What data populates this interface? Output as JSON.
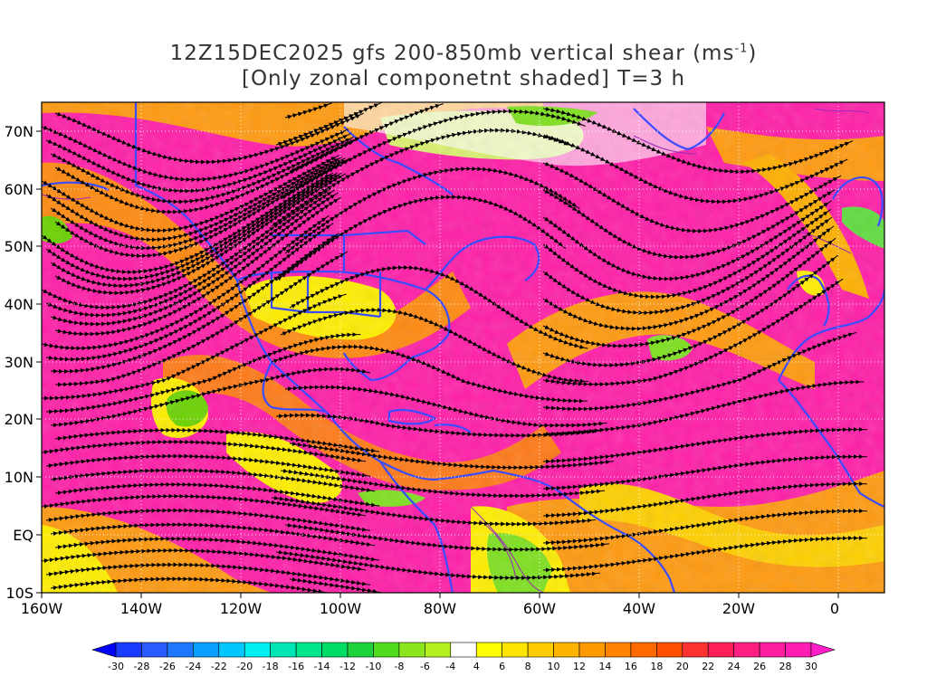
{
  "title": {
    "line1": "12Z15DEC2025 gfs 200-850mb vertical shear (ms",
    "line1_sup": "-1",
    "line1_end": ")",
    "line2": "[Only zonal componetnt shaded] T=3 h"
  },
  "map": {
    "lat_labels": [
      "70N",
      "60N",
      "50N",
      "40N",
      "30N",
      "20N",
      "10N",
      "EQ",
      "10S"
    ],
    "lon_labels": [
      "160W",
      "140W",
      "120W",
      "100W",
      "80W",
      "60W",
      "40W",
      "20W",
      "0"
    ],
    "colors": {
      "magenta": "#ff1fa8",
      "red": "#ff2050",
      "orange": "#ff8a10",
      "yellow": "#ffee00",
      "green": "#7fe020",
      "coast": "#3a4cff",
      "streamline": "#000000"
    }
  },
  "colorbar": {
    "labels": [
      "-30",
      "-28",
      "-26",
      "-24",
      "-22",
      "-20",
      "-18",
      "-16",
      "-14",
      "-12",
      "-10",
      "-8",
      "-6",
      "-4",
      "4",
      "6",
      "8",
      "10",
      "12",
      "14",
      "16",
      "18",
      "20",
      "22",
      "24",
      "26",
      "28",
      "30"
    ],
    "colors": [
      "#0000ff",
      "#1a3cff",
      "#2a5cff",
      "#1e78ff",
      "#0aa0ff",
      "#00c8ff",
      "#00f0f0",
      "#00e6b4",
      "#00e68c",
      "#00dc64",
      "#1ed23c",
      "#50dc1e",
      "#8ce61e",
      "#b4f01e",
      "#ffffff",
      "#ffff00",
      "#ffe600",
      "#ffcd00",
      "#ffb400",
      "#ff9b00",
      "#ff8200",
      "#ff6900",
      "#ff5000",
      "#ff3232",
      "#ff1e5a",
      "#ff1e82",
      "#ff1ea0",
      "#ff1eb4",
      "#ff1ec8"
    ]
  }
}
